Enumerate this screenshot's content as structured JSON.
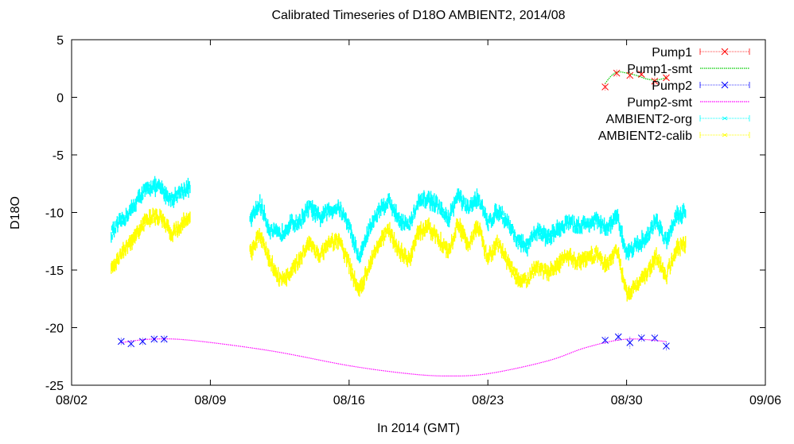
{
  "chart_data": {
    "type": "line",
    "title": "Calibrated Timeseries of D18O AMBIENT2, 2014/08",
    "xlabel": "In 2014 (GMT)",
    "ylabel": "D18O",
    "xlim": [
      "2014-08-02",
      "2014-09-06"
    ],
    "ylim": [
      -25,
      5
    ],
    "x_ticks": [
      "08/02",
      "08/09",
      "08/16",
      "08/23",
      "08/30",
      "09/06"
    ],
    "y_ticks": [
      5,
      0,
      -5,
      -10,
      -15,
      -20,
      -25
    ],
    "grid": false,
    "legend_position": "top-right",
    "colors": {
      "pump1": "#ff0000",
      "pump1_smt": "#00cc00",
      "pump2": "#0000ff",
      "pump2_smt": "#ff00ff",
      "ambient2_org": "#00ffff",
      "ambient2_calib": "#ffff00"
    },
    "series": [
      {
        "name": "Pump1",
        "key": "pump1",
        "style": "points-errorbars",
        "marker": "x",
        "x": [
          "2014-08-28 22:00",
          "2014-08-29 12:00",
          "2014-08-30 04:00",
          "2014-08-30 18:00",
          "2014-08-31 10:00",
          "2014-09-01 00:00"
        ],
        "y": [
          0.9,
          2.1,
          1.9,
          2.0,
          1.4,
          1.7
        ],
        "err": [
          0.3,
          0.3,
          0.3,
          0.2,
          0.3,
          0.2
        ]
      },
      {
        "name": "Pump1-smt",
        "key": "pump1_smt",
        "style": "line",
        "x": [
          "2014-08-28 22:00",
          "2014-08-29 06:00",
          "2014-08-29 14:00",
          "2014-08-30 00:00",
          "2014-08-30 12:00",
          "2014-08-31 00:00",
          "2014-08-31 12:00",
          "2014-09-01 00:00"
        ],
        "y": [
          1.2,
          1.9,
          2.2,
          2.1,
          1.9,
          1.6,
          1.5,
          1.7
        ]
      },
      {
        "name": "Pump2",
        "key": "pump2",
        "style": "points-errorbars",
        "marker": "x",
        "x": [
          "2014-08-04 12:00",
          "2014-08-05 00:00",
          "2014-08-05 14:00",
          "2014-08-06 04:00",
          "2014-08-06 16:00",
          "2014-08-28 22:00",
          "2014-08-29 14:00",
          "2014-08-30 04:00",
          "2014-08-30 18:00",
          "2014-08-31 10:00",
          "2014-09-01 00:00"
        ],
        "y": [
          -21.2,
          -21.4,
          -21.2,
          -21.0,
          -21.0,
          -21.1,
          -20.8,
          -21.3,
          -20.9,
          -20.9,
          -21.6
        ],
        "err": [
          0.3,
          0.3,
          0.3,
          0.3,
          0.3,
          0.3,
          0.3,
          0.5,
          0.3,
          0.3,
          0.4
        ]
      },
      {
        "name": "Pump2-smt",
        "key": "pump2_smt",
        "style": "line",
        "x": [
          "2014-08-04 12:00",
          "2014-08-06 00:00",
          "2014-08-08 00:00",
          "2014-08-12 00:00",
          "2014-08-16 00:00",
          "2014-08-19 00:00",
          "2014-08-21 00:00",
          "2014-08-23 00:00",
          "2014-08-26 00:00",
          "2014-08-28 00:00",
          "2014-08-30 00:00",
          "2014-09-01 00:00"
        ],
        "y": [
          -21.3,
          -21.0,
          -21.1,
          -22.0,
          -23.3,
          -24.0,
          -24.2,
          -24.0,
          -22.9,
          -21.7,
          -21.0,
          -21.2
        ]
      },
      {
        "name": "AMBIENT2-org",
        "key": "ambient2_org",
        "style": "dense-points",
        "segments": [
          {
            "x": [
              "2014-08-04 00:00",
              "2014-08-04 12:00",
              "2014-08-05 00:00",
              "2014-08-05 12:00",
              "2014-08-06 00:00",
              "2014-08-06 12:00",
              "2014-08-07 00:00",
              "2014-08-07 12:00",
              "2014-08-08 00:00"
            ],
            "y": [
              -11.8,
              -10.8,
              -9.8,
              -8.5,
              -7.7,
              -7.9,
              -8.9,
              -8.2,
              -7.8
            ]
          },
          {
            "x": [
              "2014-08-11 00:00",
              "2014-08-11 12:00",
              "2014-08-12 00:00",
              "2014-08-12 12:00",
              "2014-08-13 00:00",
              "2014-08-13 12:00",
              "2014-08-14 00:00",
              "2014-08-14 12:00",
              "2014-08-15 00:00",
              "2014-08-15 12:00",
              "2014-08-16 00:00",
              "2014-08-16 12:00",
              "2014-08-17 00:00",
              "2014-08-17 12:00",
              "2014-08-18 00:00",
              "2014-08-18 12:00",
              "2014-08-19 00:00",
              "2014-08-19 12:00",
              "2014-08-20 00:00",
              "2014-08-20 12:00",
              "2014-08-21 00:00",
              "2014-08-21 12:00",
              "2014-08-22 00:00",
              "2014-08-22 12:00",
              "2014-08-23 00:00",
              "2014-08-23 12:00",
              "2014-08-24 00:00",
              "2014-08-24 12:00",
              "2014-08-25 00:00",
              "2014-08-25 12:00",
              "2014-08-26 00:00",
              "2014-08-26 12:00",
              "2014-08-27 00:00",
              "2014-08-27 12:00",
              "2014-08-28 00:00",
              "2014-08-28 12:00",
              "2014-08-29 00:00",
              "2014-08-29 12:00",
              "2014-08-30 00:00",
              "2014-08-30 12:00",
              "2014-08-31 00:00",
              "2014-08-31 12:00",
              "2014-09-01 00:00",
              "2014-09-01 12:00",
              "2014-09-02 00:00"
            ],
            "y": [
              -10.8,
              -9.2,
              -11.5,
              -12.0,
              -11.0,
              -10.8,
              -9.5,
              -10.5,
              -9.8,
              -9.5,
              -11.2,
              -14.0,
              -11.5,
              -9.8,
              -9.0,
              -10.5,
              -11.2,
              -9.2,
              -8.8,
              -9.5,
              -10.6,
              -8.5,
              -9.8,
              -8.6,
              -11.0,
              -9.8,
              -10.8,
              -12.5,
              -13.0,
              -11.5,
              -12.2,
              -11.5,
              -10.9,
              -11.2,
              -11.0,
              -10.7,
              -11.5,
              -10.3,
              -13.5,
              -12.8,
              -12.2,
              -10.7,
              -12.5,
              -10.2,
              -10.0
            ]
          }
        ]
      },
      {
        "name": "AMBIENT2-calib",
        "key": "ambient2_calib",
        "style": "dense-points",
        "segments": [
          {
            "x": [
              "2014-08-04 00:00",
              "2014-08-04 12:00",
              "2014-08-05 00:00",
              "2014-08-05 12:00",
              "2014-08-06 00:00",
              "2014-08-06 12:00",
              "2014-08-07 00:00",
              "2014-08-07 12:00",
              "2014-08-08 00:00"
            ],
            "y": [
              -14.8,
              -13.6,
              -12.6,
              -11.3,
              -10.3,
              -10.5,
              -11.8,
              -11.2,
              -10.2
            ]
          },
          {
            "x": [
              "2014-08-11 00:00",
              "2014-08-11 12:00",
              "2014-08-12 00:00",
              "2014-08-12 12:00",
              "2014-08-13 00:00",
              "2014-08-13 12:00",
              "2014-08-14 00:00",
              "2014-08-14 12:00",
              "2014-08-15 00:00",
              "2014-08-15 12:00",
              "2014-08-16 00:00",
              "2014-08-16 12:00",
              "2014-08-17 00:00",
              "2014-08-17 12:00",
              "2014-08-18 00:00",
              "2014-08-18 12:00",
              "2014-08-19 00:00",
              "2014-08-19 12:00",
              "2014-08-20 00:00",
              "2014-08-20 12:00",
              "2014-08-21 00:00",
              "2014-08-21 12:00",
              "2014-08-22 00:00",
              "2014-08-22 12:00",
              "2014-08-23 00:00",
              "2014-08-23 12:00",
              "2014-08-24 00:00",
              "2014-08-24 12:00",
              "2014-08-25 00:00",
              "2014-08-25 12:00",
              "2014-08-26 00:00",
              "2014-08-26 12:00",
              "2014-08-27 00:00",
              "2014-08-27 12:00",
              "2014-08-28 00:00",
              "2014-08-28 12:00",
              "2014-08-29 00:00",
              "2014-08-29 12:00",
              "2014-08-30 00:00",
              "2014-08-30 12:00",
              "2014-08-31 00:00",
              "2014-08-31 12:00",
              "2014-09-01 00:00",
              "2014-09-01 12:00",
              "2014-09-02 00:00"
            ],
            "y": [
              -13.5,
              -12.0,
              -14.2,
              -15.8,
              -15.5,
              -14.0,
              -12.5,
              -13.8,
              -12.8,
              -12.4,
              -14.5,
              -17.0,
              -14.6,
              -12.5,
              -11.6,
              -13.2,
              -14.2,
              -11.8,
              -11.3,
              -12.2,
              -13.5,
              -11.0,
              -12.8,
              -11.2,
              -14.0,
              -12.7,
              -14.2,
              -15.8,
              -16.0,
              -14.6,
              -15.3,
              -14.6,
              -13.8,
              -14.2,
              -14.0,
              -13.6,
              -14.6,
              -13.2,
              -17.0,
              -16.2,
              -15.5,
              -13.7,
              -15.6,
              -13.1,
              -12.8
            ]
          }
        ]
      }
    ]
  }
}
